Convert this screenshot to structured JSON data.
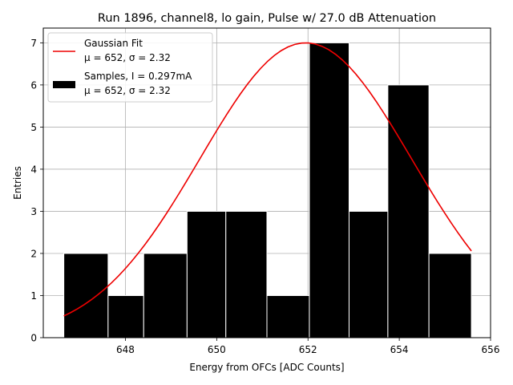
{
  "chart_data": {
    "type": "bar",
    "title": "Run 1896, channel8, lo gain, Pulse w/ 27.0 dB Attenuation",
    "xlabel": "Energy from OFCs [ADC Counts]",
    "ylabel": "Entries",
    "xlim": [
      646.2,
      656.0
    ],
    "ylim": [
      0,
      7.35
    ],
    "xticks": [
      648,
      650,
      652,
      654,
      656
    ],
    "yticks": [
      0,
      1,
      2,
      3,
      4,
      5,
      6,
      7
    ],
    "grid": true,
    "bins": [
      {
        "left": 646.65,
        "right": 647.62,
        "count": 2
      },
      {
        "left": 647.62,
        "right": 648.4,
        "count": 1
      },
      {
        "left": 648.4,
        "right": 649.35,
        "count": 2
      },
      {
        "left": 649.35,
        "right": 650.2,
        "count": 3
      },
      {
        "left": 650.2,
        "right": 651.1,
        "count": 3
      },
      {
        "left": 651.1,
        "right": 652.03,
        "count": 1
      },
      {
        "left": 652.03,
        "right": 652.9,
        "count": 7
      },
      {
        "left": 652.9,
        "right": 653.75,
        "count": 3
      },
      {
        "left": 653.75,
        "right": 654.65,
        "count": 6
      },
      {
        "left": 654.65,
        "right": 655.58,
        "count": 2
      }
    ],
    "fit": {
      "mu": 651.95,
      "sigma": 2.32,
      "amplitude": 7.0,
      "x_start": 646.65,
      "x_end": 655.58
    },
    "legend": {
      "position": "top-left",
      "entries": [
        {
          "name": "fit-legend",
          "line1": "Gaussian Fit",
          "line2": "μ = 652, σ = 2.32"
        },
        {
          "name": "samples-legend",
          "line1": "Samples, I = 0.297mA",
          "line2": "μ = 652, σ = 2.32"
        }
      ]
    },
    "colors": {
      "bar": "#000000",
      "bar_edge": "#ffffff",
      "fit": "#ee0000",
      "grid": "#b0b0b0"
    }
  }
}
